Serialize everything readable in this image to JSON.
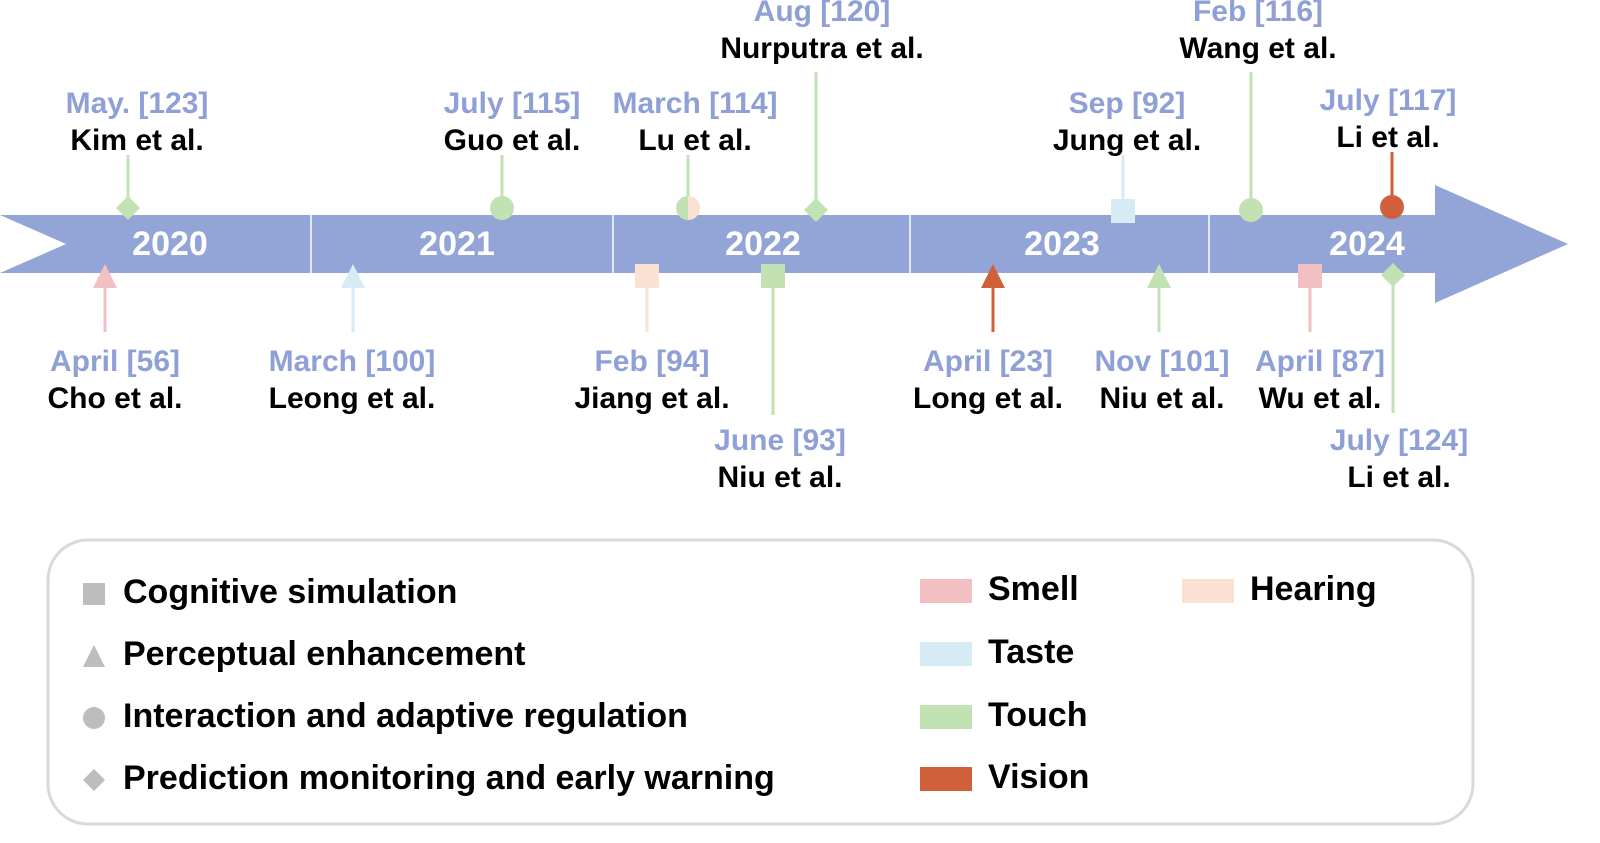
{
  "timeline": {
    "years": [
      "2020",
      "2021",
      "2022",
      "2023",
      "2024"
    ],
    "events_above": [
      {
        "date": "May. [123]",
        "author": "Kim et al."
      },
      {
        "date": "July [115]",
        "author": "Guo et al."
      },
      {
        "date": "March [114]",
        "author": "Lu et al."
      },
      {
        "date": "Aug [120]",
        "author": "Nurputra et al."
      },
      {
        "date": "Sep [92]",
        "author": "Jung et al."
      },
      {
        "date": "Feb [116]",
        "author": "Wang et al."
      },
      {
        "date": "July [117]",
        "author": "Li et al."
      }
    ],
    "events_below": [
      {
        "date": "April [56]",
        "author": "Cho et al."
      },
      {
        "date": "March [100]",
        "author": "Leong et al."
      },
      {
        "date": "Feb [94]",
        "author": "Jiang et al."
      },
      {
        "date": "June [93]",
        "author": "Niu et al."
      },
      {
        "date": "April [23]",
        "author": "Long et al."
      },
      {
        "date": "Nov [101]",
        "author": "Niu et al."
      },
      {
        "date": "April [87]",
        "author": "Wu et al."
      },
      {
        "date": "July [124]",
        "author": "Li et al."
      }
    ]
  },
  "legend": {
    "categories": [
      "Cognitive simulation",
      "Perceptual enhancement",
      "Interaction and adaptive regulation",
      "Prediction monitoring and early warning"
    ],
    "senses": [
      "Smell",
      "Taste",
      "Touch",
      "Vision",
      "Hearing"
    ]
  }
}
